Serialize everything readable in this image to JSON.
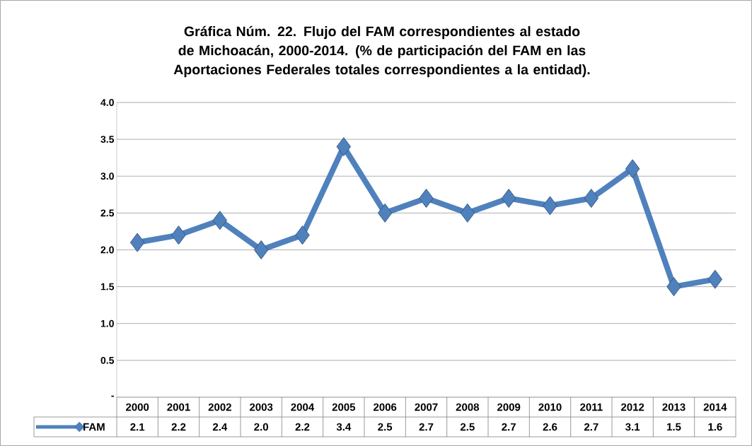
{
  "chart_data": {
    "type": "line",
    "title": "Gráfica Núm. 22. Flujo del FAM correspondientes al estado de Michoacán, 2000-2014. (% de participación del FAM en las Aportaciones Federales totales correspondientes a la entidad).",
    "categories": [
      "2000",
      "2001",
      "2002",
      "2003",
      "2004",
      "2005",
      "2006",
      "2007",
      "2008",
      "2009",
      "2010",
      "2011",
      "2012",
      "2013",
      "2014"
    ],
    "series": [
      {
        "name": "FAM",
        "color": "#4f81bd",
        "values": [
          2.1,
          2.2,
          2.4,
          2.0,
          2.2,
          3.4,
          2.5,
          2.7,
          2.5,
          2.7,
          2.6,
          2.7,
          3.1,
          1.5,
          1.6
        ],
        "value_labels": [
          "2.1",
          "2.2",
          "2.4",
          "2.0",
          "2.2",
          "3.4",
          "2.5",
          "2.7",
          "2.5",
          "2.7",
          "2.6",
          "2.7",
          "3.1",
          "1.5",
          "1.6"
        ]
      }
    ],
    "ylim": [
      0,
      4
    ],
    "yticks": [
      {
        "value": 0,
        "label": "-"
      },
      0.5,
      {
        "value": 1,
        "label": "1.0"
      },
      1.5,
      {
        "value": 2,
        "label": "2.0"
      },
      2.5,
      {
        "value": 3,
        "label": "3.0"
      },
      3.5,
      {
        "value": 4,
        "label": "4.0"
      }
    ],
    "grid": "y",
    "legend": "bottom left",
    "marker": "diamond",
    "line_style": "solid"
  }
}
